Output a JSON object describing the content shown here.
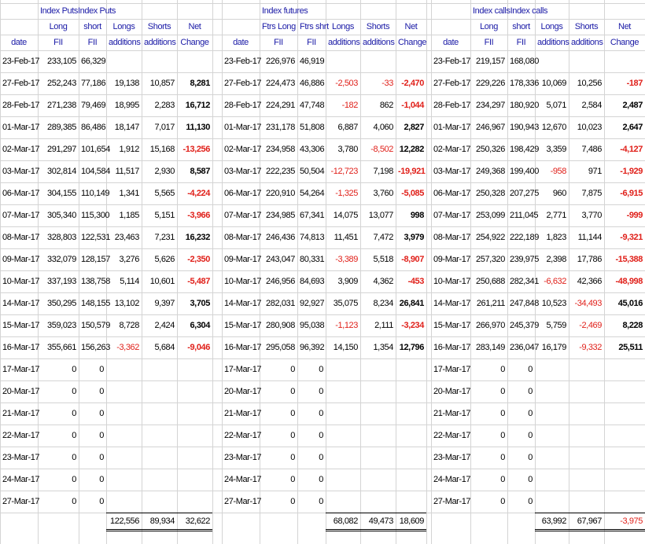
{
  "blocks": [
    {
      "title": "Index PutsIndex Puts",
      "headers": [
        [
          "Long",
          "short",
          "Longs",
          "Shorts",
          "Net"
        ],
        [
          "date",
          "FII",
          "FII",
          "additions",
          "additions",
          "Change"
        ]
      ],
      "rows": [
        [
          "23-Feb-17",
          "233,105",
          "66,329"
        ],
        [
          "27-Feb-17",
          "252,243",
          "77,186",
          "19,138",
          "10,857",
          "8,281"
        ],
        [
          "28-Feb-17",
          "271,238",
          "79,469",
          "18,995",
          "2,283",
          "16,712"
        ],
        [
          "01-Mar-17",
          "289,385",
          "86,486",
          "18,147",
          "7,017",
          "11,130"
        ],
        [
          "02-Mar-17",
          "291,297",
          "101,654",
          "1,912",
          "15,168",
          "-13,256"
        ],
        [
          "03-Mar-17",
          "302,814",
          "104,584",
          "11,517",
          "2,930",
          "8,587"
        ],
        [
          "06-Mar-17",
          "304,155",
          "110,149",
          "1,341",
          "5,565",
          "-4,224"
        ],
        [
          "07-Mar-17",
          "305,340",
          "115,300",
          "1,185",
          "5,151",
          "-3,966"
        ],
        [
          "08-Mar-17",
          "328,803",
          "122,531",
          "23,463",
          "7,231",
          "16,232"
        ],
        [
          "09-Mar-17",
          "332,079",
          "128,157",
          "3,276",
          "5,626",
          "-2,350"
        ],
        [
          "10-Mar-17",
          "337,193",
          "138,758",
          "5,114",
          "10,601",
          "-5,487"
        ],
        [
          "14-Mar-17",
          "350,295",
          "148,155",
          "13,102",
          "9,397",
          "3,705"
        ],
        [
          "15-Mar-17",
          "359,023",
          "150,579",
          "8,728",
          "2,424",
          "6,304"
        ],
        [
          "16-Mar-17",
          "355,661",
          "156,263",
          "-3,362",
          "5,684",
          "-9,046"
        ],
        [
          "17-Mar-17",
          "0",
          "0"
        ],
        [
          "20-Mar-17",
          "0",
          "0"
        ],
        [
          "21-Mar-17",
          "0",
          "0"
        ],
        [
          "22-Mar-17",
          "0",
          "0"
        ],
        [
          "23-Mar-17",
          "0",
          "0"
        ],
        [
          "24-Mar-17",
          "0",
          "0"
        ],
        [
          "27-Mar-17",
          "0",
          "0"
        ]
      ],
      "totals": [
        "122,556",
        "89,934",
        "32,622"
      ]
    },
    {
      "title": "Index futures",
      "headers": [
        [
          "Ftrs Long",
          "Ftrs shrt",
          "Longs",
          "Shorts",
          "Net"
        ],
        [
          "date",
          "FII",
          "FII",
          "additions",
          "additions",
          "Change"
        ]
      ],
      "rows": [
        [
          "23-Feb-17",
          "226,976",
          "46,919"
        ],
        [
          "27-Feb-17",
          "224,473",
          "46,886",
          "-2,503",
          "-33",
          "-2,470"
        ],
        [
          "28-Feb-17",
          "224,291",
          "47,748",
          "-182",
          "862",
          "-1,044"
        ],
        [
          "01-Mar-17",
          "231,178",
          "51,808",
          "6,887",
          "4,060",
          "2,827"
        ],
        [
          "02-Mar-17",
          "234,958",
          "43,306",
          "3,780",
          "-8,502",
          "12,282"
        ],
        [
          "03-Mar-17",
          "222,235",
          "50,504",
          "-12,723",
          "7,198",
          "-19,921"
        ],
        [
          "06-Mar-17",
          "220,910",
          "54,264",
          "-1,325",
          "3,760",
          "-5,085"
        ],
        [
          "07-Mar-17",
          "234,985",
          "67,341",
          "14,075",
          "13,077",
          "998"
        ],
        [
          "08-Mar-17",
          "246,436",
          "74,813",
          "11,451",
          "7,472",
          "3,979"
        ],
        [
          "09-Mar-17",
          "243,047",
          "80,331",
          "-3,389",
          "5,518",
          "-8,907"
        ],
        [
          "10-Mar-17",
          "246,956",
          "84,693",
          "3,909",
          "4,362",
          "-453"
        ],
        [
          "14-Mar-17",
          "282,031",
          "92,927",
          "35,075",
          "8,234",
          "26,841"
        ],
        [
          "15-Mar-17",
          "280,908",
          "95,038",
          "-1,123",
          "2,111",
          "-3,234"
        ],
        [
          "16-Mar-17",
          "295,058",
          "96,392",
          "14,150",
          "1,354",
          "12,796"
        ],
        [
          "17-Mar-17",
          "0",
          "0"
        ],
        [
          "20-Mar-17",
          "0",
          "0"
        ],
        [
          "21-Mar-17",
          "0",
          "0"
        ],
        [
          "22-Mar-17",
          "0",
          "0"
        ],
        [
          "23-Mar-17",
          "0",
          "0"
        ],
        [
          "24-Mar-17",
          "0",
          "0"
        ],
        [
          "27-Mar-17",
          "0",
          "0"
        ]
      ],
      "totals": [
        "68,082",
        "49,473",
        "18,609"
      ]
    },
    {
      "title": "Index callsIndex calls",
      "headers": [
        [
          "Long",
          "short",
          "Longs",
          "Shorts",
          "Net"
        ],
        [
          "date",
          "FII",
          "FII",
          "additions",
          "additions",
          "Change"
        ]
      ],
      "rows": [
        [
          "23-Feb-17",
          "219,157",
          "168,080"
        ],
        [
          "27-Feb-17",
          "229,226",
          "178,336",
          "10,069",
          "10,256",
          "-187"
        ],
        [
          "28-Feb-17",
          "234,297",
          "180,920",
          "5,071",
          "2,584",
          "2,487"
        ],
        [
          "01-Mar-17",
          "246,967",
          "190,943",
          "12,670",
          "10,023",
          "2,647"
        ],
        [
          "02-Mar-17",
          "250,326",
          "198,429",
          "3,359",
          "7,486",
          "-4,127"
        ],
        [
          "03-Mar-17",
          "249,368",
          "199,400",
          "-958",
          "971",
          "-1,929"
        ],
        [
          "06-Mar-17",
          "250,328",
          "207,275",
          "960",
          "7,875",
          "-6,915"
        ],
        [
          "07-Mar-17",
          "253,099",
          "211,045",
          "2,771",
          "3,770",
          "-999"
        ],
        [
          "08-Mar-17",
          "254,922",
          "222,189",
          "1,823",
          "11,144",
          "-9,321"
        ],
        [
          "09-Mar-17",
          "257,320",
          "239,975",
          "2,398",
          "17,786",
          "-15,388"
        ],
        [
          "10-Mar-17",
          "250,688",
          "282,341",
          "-6,632",
          "42,366",
          "-48,998"
        ],
        [
          "14-Mar-17",
          "261,211",
          "247,848",
          "10,523",
          "-34,493",
          "45,016"
        ],
        [
          "15-Mar-17",
          "266,970",
          "245,379",
          "5,759",
          "-2,469",
          "8,228"
        ],
        [
          "16-Mar-17",
          "283,149",
          "236,047",
          "16,179",
          "-9,332",
          "25,511"
        ],
        [
          "17-Mar-17",
          "0",
          "0"
        ],
        [
          "20-Mar-17",
          "0",
          "0"
        ],
        [
          "21-Mar-17",
          "0",
          "0"
        ],
        [
          "22-Mar-17",
          "0",
          "0"
        ],
        [
          "23-Mar-17",
          "0",
          "0"
        ],
        [
          "24-Mar-17",
          "0",
          "0"
        ],
        [
          "27-Mar-17",
          "0",
          "0"
        ]
      ],
      "totals": [
        "63,992",
        "67,967",
        "-3,975"
      ]
    }
  ]
}
